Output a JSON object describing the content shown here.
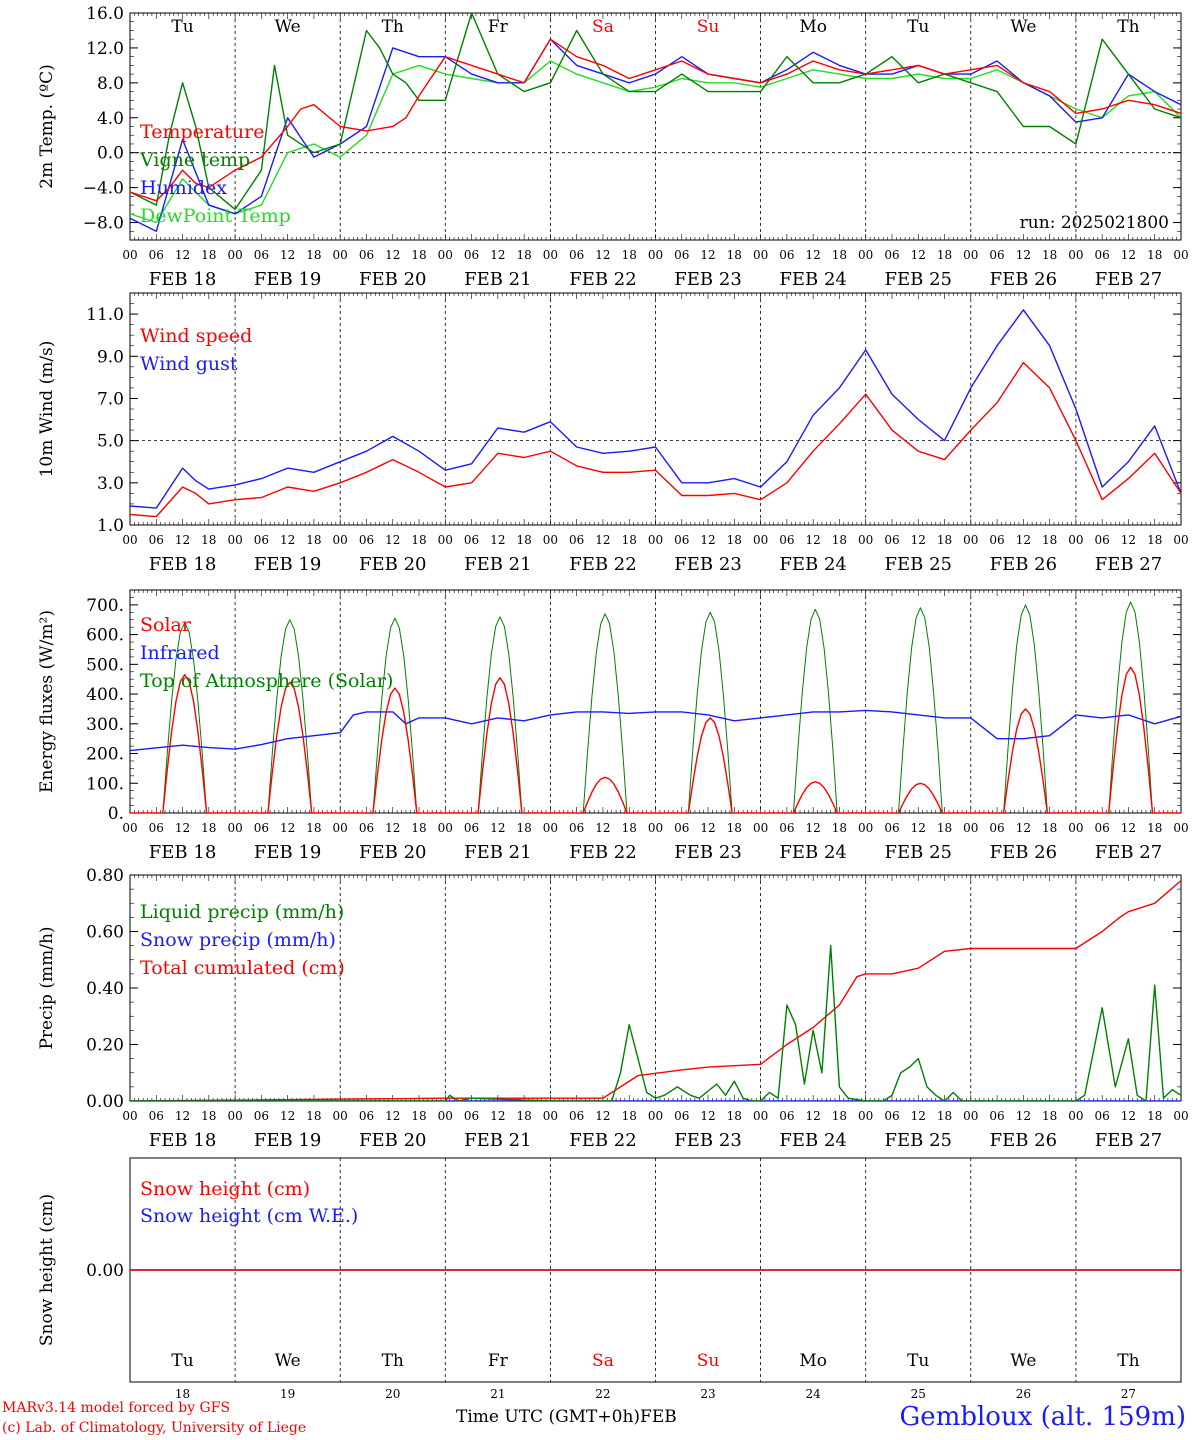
{
  "days": [
    {
      "dow": "Tu",
      "date": "FEB 18",
      "num": "18",
      "weekend": false
    },
    {
      "dow": "We",
      "date": "FEB 19",
      "num": "19",
      "weekend": false
    },
    {
      "dow": "Th",
      "date": "FEB 20",
      "num": "20",
      "weekend": false
    },
    {
      "dow": "Fr",
      "date": "FEB 21",
      "num": "21",
      "weekend": false
    },
    {
      "dow": "Sa",
      "date": "FEB 22",
      "num": "22",
      "weekend": true
    },
    {
      "dow": "Su",
      "date": "FEB 23",
      "num": "23",
      "weekend": true
    },
    {
      "dow": "Mo",
      "date": "FEB 24",
      "num": "24",
      "weekend": false
    },
    {
      "dow": "Tu",
      "date": "FEB 25",
      "num": "25",
      "weekend": false
    },
    {
      "dow": "We",
      "date": "FEB 26",
      "num": "26",
      "weekend": false
    },
    {
      "dow": "Th",
      "date": "FEB 27",
      "num": "27",
      "weekend": false
    }
  ],
  "hour_ticks": [
    "00",
    "06",
    "12",
    "18"
  ],
  "colors": {
    "red": "#ff0000",
    "green": "#008000",
    "blue": "#1a1aff",
    "lightgreen": "#22dd22",
    "weekend": "#ff0000"
  },
  "footer": {
    "model": "MARv3.14 model forced by GFS",
    "credit": "(c) Lab. of Climatology, University of Liege",
    "time_label": "Time UTC (GMT+0h)",
    "month": "FEB",
    "station": "Gembloux (alt. 159m)"
  },
  "chart_data": [
    {
      "type": "line",
      "ylabel": "2m Temp. (ºC)",
      "ylim": [
        -10,
        16
      ],
      "yticks": [
        "−8.0",
        "−4.0",
        "0.0",
        "4.0",
        "8.0",
        "12.0",
        "16.0"
      ],
      "ytick_values": [
        -8,
        -4,
        0,
        4,
        8,
        12,
        16
      ],
      "zero_line": 0,
      "annotation": "run: 2025021800",
      "x_unit": "hours since FEB 18 00 UTC",
      "series": [
        {
          "name": "Temperature",
          "color": "red",
          "x": [
            0,
            6,
            9,
            12,
            15,
            18,
            24,
            30,
            36,
            39,
            42,
            48,
            54,
            60,
            63,
            66,
            72,
            78,
            84,
            90,
            96,
            102,
            108,
            114,
            120,
            126,
            132,
            138,
            144,
            150,
            156,
            162,
            168,
            174,
            180,
            186,
            192,
            198,
            204,
            210,
            216,
            222,
            228,
            234,
            240
          ],
          "values": [
            -4.5,
            -5.5,
            -4,
            -2,
            -3.5,
            -4,
            -2,
            -0.5,
            3,
            5,
            5.5,
            3,
            2.5,
            3,
            4,
            6.5,
            11,
            10,
            9,
            8,
            13,
            11,
            10,
            8.5,
            9.5,
            10.5,
            9,
            8.5,
            8,
            9,
            10.5,
            9.5,
            9,
            9.5,
            10,
            9,
            9.5,
            10,
            8,
            7,
            4.5,
            5,
            6,
            5.5,
            4.5
          ]
        },
        {
          "name": "Vigne temp",
          "color": "green",
          "x": [
            0,
            6,
            9,
            12,
            15,
            18,
            24,
            30,
            33,
            36,
            42,
            48,
            54,
            57,
            60,
            63,
            66,
            72,
            78,
            84,
            90,
            96,
            102,
            108,
            114,
            120,
            126,
            132,
            138,
            144,
            150,
            156,
            162,
            168,
            174,
            180,
            186,
            192,
            198,
            204,
            210,
            216,
            222,
            228,
            234,
            240
          ],
          "values": [
            -4.5,
            -6,
            2,
            8,
            3,
            -4,
            -6.5,
            -2,
            10,
            2,
            0,
            1,
            14,
            12,
            9,
            8,
            6,
            6,
            16,
            9,
            7,
            8,
            14,
            9,
            7,
            7,
            9,
            7,
            7,
            7,
            11,
            8,
            8,
            9,
            11,
            8,
            9,
            8,
            7,
            3,
            3,
            1,
            13,
            9,
            5,
            4
          ]
        },
        {
          "name": "Humidex",
          "color": "blue",
          "x": [
            0,
            6,
            12,
            18,
            24,
            30,
            36,
            42,
            48,
            54,
            60,
            66,
            72,
            78,
            84,
            90,
            96,
            102,
            108,
            114,
            120,
            126,
            132,
            138,
            144,
            150,
            156,
            162,
            168,
            174,
            180,
            186,
            192,
            198,
            204,
            210,
            216,
            222,
            228,
            234,
            240
          ],
          "values": [
            -7.5,
            -9,
            1.5,
            -6,
            -7,
            -5,
            4,
            -0.5,
            1,
            3,
            12,
            11,
            11,
            9,
            8,
            8,
            13,
            10,
            9,
            8,
            9,
            11,
            9,
            8.5,
            8,
            9.5,
            11.5,
            10,
            9,
            9,
            10,
            9,
            9,
            10.5,
            8,
            6.5,
            3.5,
            4,
            9,
            7,
            5.5
          ]
        },
        {
          "name": "DewPoint Temp",
          "color": "lightgreen",
          "x": [
            0,
            6,
            12,
            18,
            24,
            30,
            36,
            42,
            48,
            54,
            60,
            66,
            72,
            78,
            84,
            90,
            96,
            102,
            108,
            114,
            120,
            126,
            132,
            138,
            144,
            150,
            156,
            162,
            168,
            174,
            180,
            186,
            192,
            198,
            204,
            210,
            216,
            222,
            228,
            234,
            240
          ],
          "values": [
            -7,
            -8,
            -3,
            -6,
            -7,
            -6,
            0,
            1,
            -0.5,
            2,
            9,
            10,
            9,
            8.5,
            8,
            8,
            10.5,
            9,
            8,
            7,
            7.5,
            8.5,
            8,
            8,
            7.5,
            8.5,
            9.5,
            9,
            8.5,
            8.5,
            9,
            8.5,
            8.5,
            9.5,
            8,
            6.5,
            5,
            4,
            6.5,
            7,
            4
          ]
        }
      ]
    },
    {
      "type": "line",
      "ylabel": "10m Wind (m/s)",
      "ylim": [
        1,
        12
      ],
      "yticks": [
        "1.0",
        "3.0",
        "5.0",
        "7.0",
        "9.0",
        "11.0"
      ],
      "ytick_values": [
        1,
        3,
        5,
        7,
        9,
        11
      ],
      "ref_line": 5,
      "series": [
        {
          "name": "Wind speed",
          "color": "red",
          "x": [
            0,
            6,
            12,
            15,
            18,
            24,
            30,
            36,
            42,
            48,
            54,
            60,
            66,
            72,
            78,
            84,
            90,
            96,
            102,
            108,
            114,
            120,
            126,
            132,
            138,
            144,
            150,
            156,
            162,
            168,
            174,
            180,
            186,
            192,
            198,
            204,
            210,
            216,
            222,
            228,
            234,
            240
          ],
          "values": [
            1.5,
            1.4,
            2.8,
            2.5,
            2,
            2.2,
            2.3,
            2.8,
            2.6,
            3,
            3.5,
            4.1,
            3.5,
            2.8,
            3,
            4.4,
            4.2,
            4.5,
            3.8,
            3.5,
            3.5,
            3.6,
            2.4,
            2.4,
            2.5,
            2.2,
            3,
            4.5,
            5.8,
            7.2,
            5.5,
            4.5,
            4.1,
            5.5,
            6.8,
            8.7,
            7.5,
            5,
            2.2,
            3.2,
            4.4,
            2.5
          ]
        },
        {
          "name": "Wind gust",
          "color": "blue",
          "x": [
            0,
            6,
            12,
            15,
            18,
            24,
            30,
            36,
            42,
            48,
            54,
            60,
            66,
            72,
            78,
            84,
            90,
            96,
            102,
            108,
            114,
            120,
            126,
            132,
            138,
            144,
            150,
            156,
            162,
            168,
            174,
            180,
            186,
            192,
            198,
            204,
            210,
            216,
            222,
            228,
            234,
            240
          ],
          "values": [
            1.9,
            1.8,
            3.7,
            3.1,
            2.7,
            2.9,
            3.2,
            3.7,
            3.5,
            4,
            4.5,
            5.2,
            4.5,
            3.6,
            3.9,
            5.6,
            5.4,
            5.9,
            4.7,
            4.4,
            4.5,
            4.7,
            3,
            3,
            3.2,
            2.8,
            4,
            6.2,
            7.5,
            9.3,
            7.2,
            6,
            5,
            7.5,
            9.5,
            11.2,
            9.5,
            6.5,
            2.8,
            4,
            5.7,
            2.5
          ]
        }
      ]
    },
    {
      "type": "line",
      "ylabel": "Energy fluxes (W/m²)",
      "ylim": [
        0,
        750
      ],
      "yticks": [
        "0.",
        "100.",
        "200.",
        "300.",
        "400.",
        "500.",
        "600.",
        "700."
      ],
      "ytick_values": [
        0,
        100,
        200,
        300,
        400,
        500,
        600,
        700
      ],
      "daily": {
        "toa_peak": [
          640,
          650,
          655,
          660,
          670,
          675,
          685,
          690,
          700,
          710
        ],
        "solar_peak": [
          465,
          440,
          420,
          455,
          120,
          320,
          105,
          100,
          350,
          490
        ],
        "sunrise_h": 7.5,
        "sunset_h": 17.5
      },
      "series": [
        {
          "name": "Solar",
          "color": "red"
        },
        {
          "name": "Infrared",
          "color": "blue",
          "x": [
            0,
            12,
            18,
            24,
            30,
            36,
            42,
            48,
            51,
            54,
            60,
            63,
            66,
            72,
            78,
            84,
            90,
            96,
            102,
            108,
            114,
            120,
            126,
            132,
            138,
            144,
            150,
            156,
            162,
            168,
            174,
            180,
            186,
            192,
            198,
            204,
            210,
            216,
            222,
            228,
            234,
            240
          ],
          "values": [
            210,
            228,
            220,
            215,
            230,
            250,
            260,
            270,
            330,
            340,
            340,
            300,
            320,
            320,
            300,
            320,
            310,
            330,
            340,
            340,
            335,
            340,
            340,
            330,
            310,
            320,
            330,
            340,
            340,
            345,
            340,
            330,
            320,
            320,
            250,
            250,
            260,
            330,
            320,
            330,
            300,
            325
          ]
        },
        {
          "name": "Top of Atmosphere (Solar)",
          "color": "green"
        }
      ]
    },
    {
      "type": "line",
      "ylabel": "Precip (mm/h)",
      "ylim": [
        0,
        0.8
      ],
      "yticks": [
        "0.00",
        "0.20",
        "0.40",
        "0.60",
        "0.80"
      ],
      "ytick_values": [
        0,
        0.2,
        0.4,
        0.6,
        0.8
      ],
      "series": [
        {
          "name": "Liquid precip (mm/h)",
          "color": "green",
          "x": [
            0,
            72,
            73,
            75,
            78,
            96,
            110,
            112,
            114,
            116,
            118,
            120,
            122,
            125,
            128,
            130,
            134,
            136,
            138,
            140,
            142,
            144,
            146,
            148,
            150,
            152,
            154,
            156,
            158,
            160,
            162,
            164,
            168,
            170,
            172,
            174,
            176,
            178,
            180,
            182,
            184,
            186,
            188,
            190,
            192,
            194,
            196,
            198,
            200,
            212,
            216,
            218,
            222,
            225,
            228,
            230,
            232,
            234,
            236,
            238,
            240
          ],
          "values": [
            0,
            0,
            0.02,
            0,
            0.01,
            0,
            0,
            0.1,
            0.27,
            0.15,
            0.03,
            0.01,
            0.02,
            0.05,
            0.02,
            0.01,
            0.06,
            0.02,
            0.07,
            0.01,
            0,
            0,
            0.03,
            0.01,
            0.34,
            0.27,
            0.06,
            0.25,
            0.1,
            0.55,
            0.05,
            0.01,
            0,
            0,
            0,
            0.02,
            0.1,
            0.12,
            0.15,
            0.05,
            0.02,
            0,
            0.03,
            0,
            0,
            0,
            0,
            0,
            0,
            0,
            0,
            0.02,
            0.33,
            0.05,
            0.22,
            0.02,
            0,
            0.41,
            0.01,
            0.04,
            0.02
          ]
        },
        {
          "name": "Snow precip (mm/h)",
          "color": "blue",
          "x": [
            0,
            240
          ],
          "values": [
            0,
            0
          ]
        },
        {
          "name": "Total cumulated (cm)",
          "color": "red",
          "x": [
            0,
            72,
            108,
            112,
            116,
            126,
            132,
            144,
            150,
            156,
            162,
            166,
            168,
            174,
            180,
            186,
            192,
            198,
            204,
            210,
            216,
            222,
            226,
            228,
            234,
            240
          ],
          "values": [
            0,
            0.01,
            0.01,
            0.05,
            0.09,
            0.11,
            0.12,
            0.13,
            0.2,
            0.26,
            0.34,
            0.44,
            0.45,
            0.45,
            0.47,
            0.53,
            0.54,
            0.54,
            0.54,
            0.54,
            0.54,
            0.6,
            0.65,
            0.67,
            0.7,
            0.78
          ]
        }
      ]
    },
    {
      "type": "line",
      "ylabel": "Snow height (cm)",
      "ylim": [
        -1,
        1
      ],
      "yticks": [
        "0.00"
      ],
      "ytick_values": [
        0
      ],
      "series": [
        {
          "name": "Snow height (cm)",
          "color": "red",
          "x": [
            0,
            240
          ],
          "values": [
            0,
            0
          ]
        },
        {
          "name": "Snow height (cm W.E.)",
          "color": "blue",
          "x": [
            0,
            240
          ],
          "values": [
            0,
            0
          ]
        }
      ]
    }
  ]
}
